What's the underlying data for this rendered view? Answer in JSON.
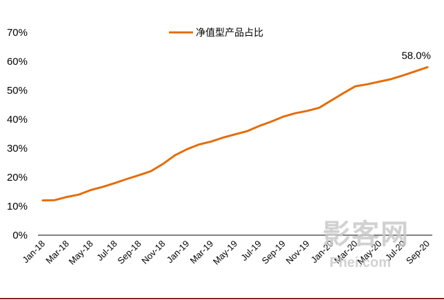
{
  "chart_data": {
    "type": "line",
    "title": "",
    "xlabel": "",
    "ylabel": "",
    "ylim": [
      0,
      70
    ],
    "yticks": [
      "0%",
      "10%",
      "20%",
      "30%",
      "40%",
      "50%",
      "60%",
      "70%"
    ],
    "x": [
      "Jan-18",
      "Feb-18",
      "Mar-18",
      "Apr-18",
      "May-18",
      "Jun-18",
      "Jul-18",
      "Aug-18",
      "Sep-18",
      "Oct-18",
      "Nov-18",
      "Dec-18",
      "Jan-19",
      "Feb-19",
      "Mar-19",
      "Apr-19",
      "May-19",
      "Jun-19",
      "Jul-19",
      "Aug-19",
      "Sep-19",
      "Oct-19",
      "Nov-19",
      "Dec-19",
      "Jan-20",
      "Feb-20",
      "Mar-20",
      "Apr-20",
      "May-20",
      "Jun-20",
      "Jul-20",
      "Aug-20",
      "Sep-20"
    ],
    "xtick_labels": [
      "Jan-18",
      "Mar-18",
      "May-18",
      "Jul-18",
      "Sep-18",
      "Nov-18",
      "Jan-19",
      "Mar-19",
      "May-19",
      "Jul-19",
      "Sep-19",
      "Nov-19",
      "Jan-20",
      "Mar-20",
      "May-20",
      "Jul-20",
      "Sep-20"
    ],
    "series": [
      {
        "name": "净值型产品占比",
        "color": "#E46C0A",
        "values": [
          12.0,
          12.1,
          13.2,
          14.0,
          15.6,
          16.7,
          18.0,
          19.4,
          20.7,
          22.1,
          24.6,
          27.6,
          29.7,
          31.3,
          32.3,
          33.7,
          34.8,
          35.9,
          37.7,
          39.2,
          40.9,
          42.1,
          42.9,
          44.0,
          46.5,
          49.0,
          51.4,
          52.1,
          53.0,
          53.9,
          55.2,
          56.6,
          58.0
        ]
      }
    ],
    "data_labels": [
      {
        "series": 0,
        "index": 32,
        "text": "58.0%"
      }
    ],
    "legend": {
      "position": "top-center"
    },
    "grid": false
  },
  "watermark": {
    "text": "影客网",
    "sub": "Phei.com"
  }
}
